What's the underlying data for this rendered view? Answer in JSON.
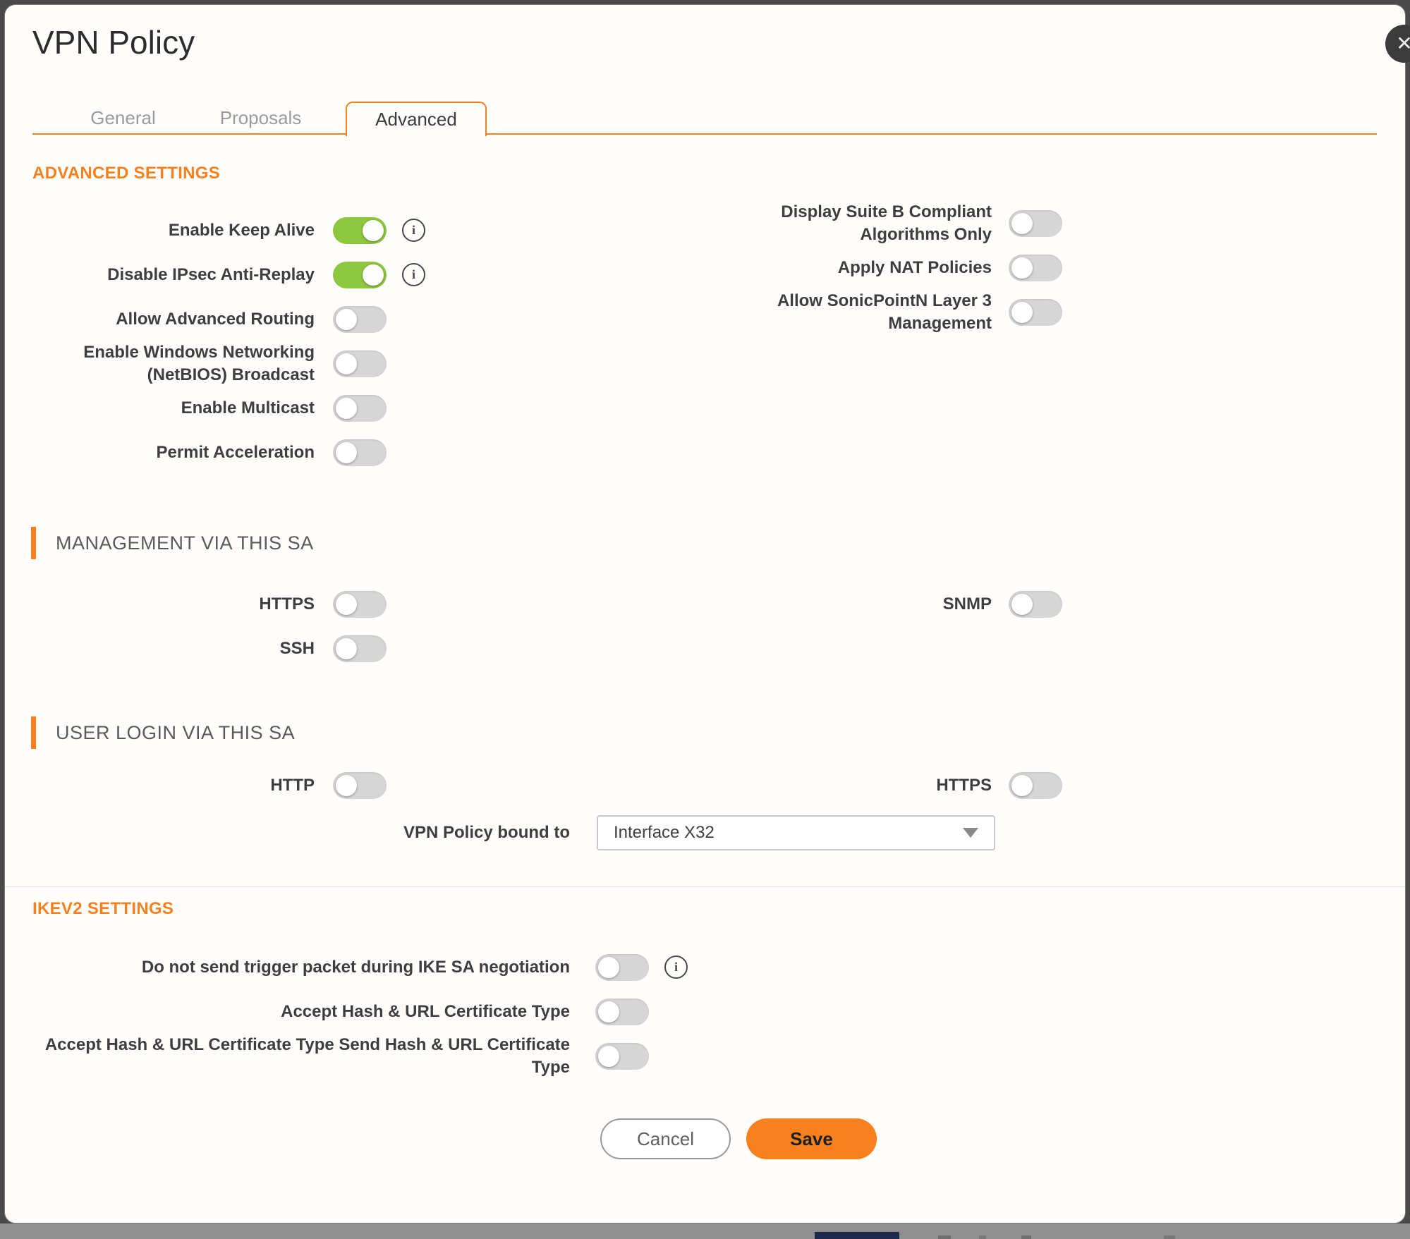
{
  "dialog": {
    "title": "VPN Policy"
  },
  "icons": {
    "info": "i",
    "close": "✕",
    "caret": "chevron-down"
  },
  "colors": {
    "accent_orange": "#F7801E",
    "toggle_on_green": "#8DC63F",
    "toggle_off_gray": "#D6D6D6",
    "save_button": "#F7821D"
  },
  "tabs": [
    {
      "label": "General",
      "active": false
    },
    {
      "label": "Proposals",
      "active": false
    },
    {
      "label": "Advanced",
      "active": true
    }
  ],
  "sections": {
    "advanced": {
      "heading": "ADVANCED SETTINGS",
      "left": [
        {
          "label": "Enable Keep Alive",
          "on": true,
          "info": true
        },
        {
          "label": "Disable IPsec Anti-Replay",
          "on": true,
          "info": true
        },
        {
          "label": "Allow Advanced Routing",
          "on": false
        },
        {
          "label": "Enable Windows Networking (NetBIOS) Broadcast",
          "on": false
        },
        {
          "label": "Enable Multicast",
          "on": false
        },
        {
          "label": "Permit Acceleration",
          "on": false
        }
      ],
      "right": [
        {
          "label": "Display Suite B Compliant Algorithms Only",
          "on": false
        },
        {
          "label": "Apply NAT Policies",
          "on": false
        },
        {
          "label": "Allow SonicPointN Layer 3 Management",
          "on": false
        }
      ]
    },
    "management": {
      "heading": "MANAGEMENT VIA THIS SA",
      "left": [
        {
          "label": "HTTPS",
          "on": false
        },
        {
          "label": "SSH",
          "on": false
        }
      ],
      "right": [
        {
          "label": "SNMP",
          "on": false
        }
      ]
    },
    "user_login": {
      "heading": "USER LOGIN VIA THIS SA",
      "left": [
        {
          "label": "HTTP",
          "on": false
        }
      ],
      "right": [
        {
          "label": "HTTPS",
          "on": false
        }
      ],
      "bound_label": "VPN Policy bound to",
      "bound_value": "Interface X32"
    },
    "ikev2": {
      "heading": "IKEV2 SETTINGS",
      "rows": [
        {
          "label": "Do not send trigger packet during IKE SA negotiation",
          "on": false,
          "info": true
        },
        {
          "label": "Accept Hash & URL Certificate Type",
          "on": false
        },
        {
          "label": "Accept Hash & URL Certificate Type Send Hash & URL Certificate Type",
          "on": false
        }
      ]
    }
  },
  "footer": {
    "cancel_label": "Cancel",
    "save_label": "Save"
  }
}
